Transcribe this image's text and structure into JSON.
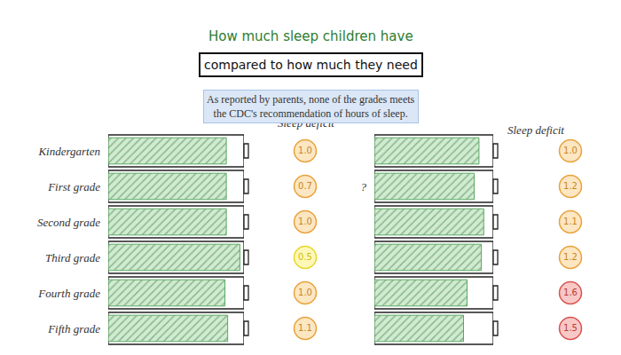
{
  "chart_data": [
    {
      "type": "bar",
      "orientation": "horizontal",
      "title": "How much sleep children have",
      "subtitle": "compared to how much they need",
      "annotations": [
        "As reported by parents, none of the grades meets the CDC's recommendation of hours of sleep."
      ],
      "categories": [
        "Kindergarten",
        "First grade",
        "Second grade",
        "Third grade",
        "Fourth grade",
        "Fifth grade"
      ],
      "values": [
        87,
        87,
        87,
        97,
        86,
        88
      ],
      "color": "#3d9a47",
      "xlim": [
        0,
        100
      ],
      "tick_labels": "y",
      "deficit_title": "Sleep deficit",
      "deficits": [
        1.0,
        0.7,
        1.0,
        0.5,
        1.0,
        1.1
      ],
      "deficit_labels": [
        "1.0",
        "0.7",
        "1.0",
        "0.5",
        "1.0",
        "1.1"
      ]
    },
    {
      "type": "bar",
      "orientation": "horizontal",
      "categories": [
        null,
        "?",
        null,
        null,
        null,
        null
      ],
      "values": [
        88,
        84,
        92,
        90,
        78,
        75
      ],
      "color": "#3d9a47",
      "xlim": [
        0,
        100
      ],
      "tick_labels": "y",
      "deficit_title": "Sleep deficit",
      "deficits": [
        1.0,
        1.2,
        1.1,
        1.2,
        1.6,
        1.5
      ],
      "deficit_labels": [
        "1.0",
        "1.2",
        "1.1",
        "1.2",
        "1.6",
        "1.5"
      ]
    }
  ]
}
